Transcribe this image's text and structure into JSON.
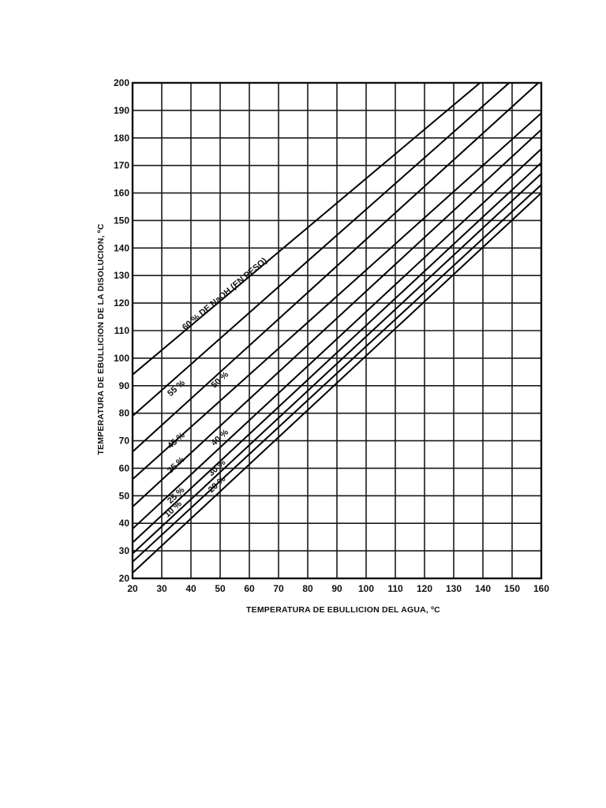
{
  "chart_data": {
    "type": "line",
    "title": "",
    "xlabel": "TEMPERATURA DE EBULLICION DEL AGUA, ºC",
    "ylabel": "TEMPERATURA DE EBULLICION DE LA DISOLUCION, ºC",
    "xlim": [
      20,
      160
    ],
    "ylim": [
      20,
      200
    ],
    "x_ticks": [
      20,
      30,
      40,
      50,
      60,
      70,
      80,
      90,
      100,
      110,
      120,
      130,
      140,
      150,
      160
    ],
    "y_ticks": [
      20,
      30,
      40,
      50,
      60,
      70,
      80,
      90,
      100,
      110,
      120,
      130,
      140,
      150,
      160,
      170,
      180,
      190,
      200
    ],
    "grid": true,
    "legend": "inline labels along lines",
    "series": [
      {
        "name": "60 % DE NaOH (EN PESO)",
        "label": "60 % DE NaOH (EN PESO)",
        "x": [
          20,
          139
        ],
        "y": [
          94,
          200
        ]
      },
      {
        "name": "55 %",
        "label": "55 %",
        "x": [
          20,
          149
        ],
        "y": [
          79,
          200
        ]
      },
      {
        "name": "50 %",
        "label": "50 %",
        "x": [
          20,
          159
        ],
        "y": [
          66,
          200
        ]
      },
      {
        "name": "45 %",
        "label": "45 %",
        "x": [
          20,
          160
        ],
        "y": [
          56,
          189
        ]
      },
      {
        "name": "40 %",
        "label": "40 %",
        "x": [
          20,
          160
        ],
        "y": [
          46,
          183
        ]
      },
      {
        "name": "35 %",
        "label": "35 %",
        "x": [
          20,
          160
        ],
        "y": [
          38,
          176
        ]
      },
      {
        "name": "30 %",
        "label": "30 %",
        "x": [
          20,
          160
        ],
        "y": [
          33,
          171
        ]
      },
      {
        "name": "25 %",
        "label": "25 %",
        "x": [
          20,
          160
        ],
        "y": [
          29,
          167
        ]
      },
      {
        "name": "20 %",
        "label": "20 %",
        "x": [
          20,
          160
        ],
        "y": [
          26,
          163
        ]
      },
      {
        "name": "10 %",
        "label": "10 %",
        "x": [
          20,
          160
        ],
        "y": [
          22,
          160
        ]
      }
    ],
    "annotations": [
      {
        "text": "60 % DE NaOH (EN PESO)",
        "x": 38,
        "y": 110
      },
      {
        "text": "55 %",
        "x": 33,
        "y": 86
      },
      {
        "text": "50 %",
        "x": 48,
        "y": 89
      },
      {
        "text": "45 %",
        "x": 33,
        "y": 67
      },
      {
        "text": "40 %",
        "x": 48,
        "y": 68
      },
      {
        "text": "35 %",
        "x": 33,
        "y": 58
      },
      {
        "text": "30 %",
        "x": 47,
        "y": 57
      },
      {
        "text": "25 %",
        "x": 33,
        "y": 47
      },
      {
        "text": "20 %",
        "x": 47,
        "y": 51
      },
      {
        "text": "10 %",
        "x": 32,
        "y": 42
      }
    ]
  }
}
